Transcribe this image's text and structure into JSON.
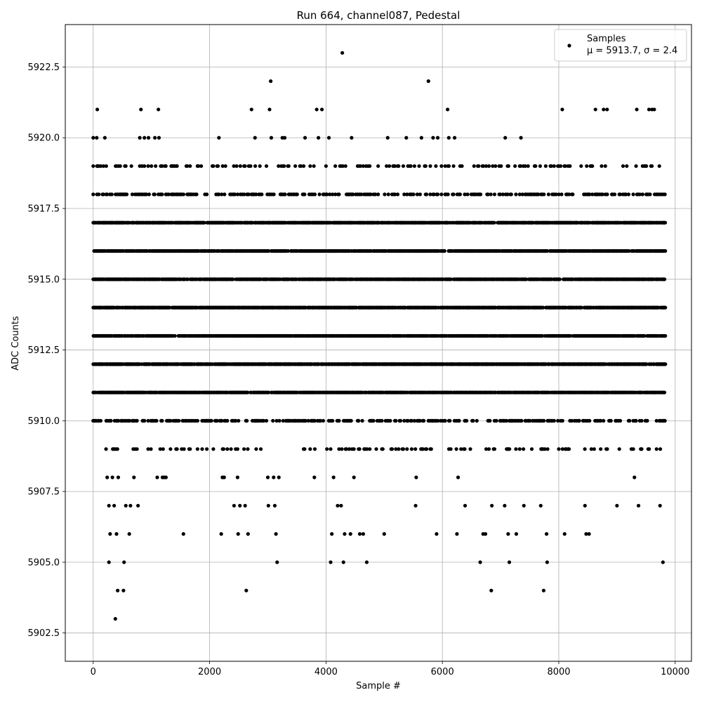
{
  "chart_data": {
    "type": "scatter",
    "title": "Run 664, channel087, Pedestal",
    "xlabel": "Sample #",
    "ylabel": "ADC Counts",
    "xlim": [
      -480,
      10280
    ],
    "ylim": [
      5901.5,
      5924
    ],
    "x_ticks": [
      0,
      2000,
      4000,
      6000,
      8000,
      10000
    ],
    "x_tick_labels": [
      "0",
      "2000",
      "4000",
      "6000",
      "8000",
      "10000"
    ],
    "y_ticks": [
      5902.5,
      5905.0,
      5907.5,
      5910.0,
      5912.5,
      5915.0,
      5917.5,
      5920.0,
      5922.5
    ],
    "y_tick_labels": [
      "5902.5",
      "5905.0",
      "5907.5",
      "5910.0",
      "5912.5",
      "5915.0",
      "5917.5",
      "5920.0",
      "5922.5"
    ],
    "grid": true,
    "legend": {
      "placement": "top-right",
      "entries": [
        {
          "name": "Samples",
          "stats": "μ = 5913.7, σ = 2.4"
        }
      ]
    },
    "series": [
      {
        "name": "Samples",
        "color": "#000000",
        "marker": "circle",
        "x_range": [
          0,
          9830
        ],
        "dense_levels": [
          5911,
          5912,
          5913,
          5914,
          5915,
          5916,
          5917
        ],
        "points": [
          [
            0,
            5920
          ],
          [
            60,
            5920
          ],
          [
            70,
            5921
          ],
          [
            80,
            5919
          ],
          [
            130,
            5919
          ],
          [
            160,
            5918
          ],
          [
            200,
            5920
          ],
          [
            220,
            5909
          ],
          [
            240,
            5908
          ],
          [
            270,
            5907
          ],
          [
            270,
            5905
          ],
          [
            290,
            5906
          ],
          [
            330,
            5908
          ],
          [
            360,
            5907
          ],
          [
            380,
            5903
          ],
          [
            400,
            5906
          ],
          [
            420,
            5904
          ],
          [
            430,
            5908
          ],
          [
            520,
            5904
          ],
          [
            530,
            5905
          ],
          [
            560,
            5907
          ],
          [
            620,
            5906
          ],
          [
            640,
            5907
          ],
          [
            700,
            5908
          ],
          [
            770,
            5907
          ],
          [
            800,
            5920
          ],
          [
            820,
            5921
          ],
          [
            840,
            5919
          ],
          [
            880,
            5920
          ],
          [
            950,
            5920
          ],
          [
            1000,
            5919
          ],
          [
            1060,
            5920
          ],
          [
            1100,
            5908
          ],
          [
            1120,
            5921
          ],
          [
            1130,
            5920
          ],
          [
            1160,
            5919
          ],
          [
            1190,
            5908
          ],
          [
            1220,
            5908
          ],
          [
            1250,
            5908
          ],
          [
            1340,
            5919
          ],
          [
            1550,
            5906
          ],
          [
            1560,
            5909
          ],
          [
            2160,
            5920
          ],
          [
            2200,
            5906
          ],
          [
            2220,
            5908
          ],
          [
            2250,
            5908
          ],
          [
            2420,
            5907
          ],
          [
            2480,
            5908
          ],
          [
            2490,
            5906
          ],
          [
            2520,
            5907
          ],
          [
            2610,
            5907
          ],
          [
            2630,
            5904
          ],
          [
            2660,
            5906
          ],
          [
            2720,
            5921
          ],
          [
            2780,
            5920
          ],
          [
            3000,
            5908
          ],
          [
            3010,
            5907
          ],
          [
            3030,
            5921
          ],
          [
            3050,
            5922
          ],
          [
            3060,
            5920
          ],
          [
            3100,
            5908
          ],
          [
            3120,
            5907
          ],
          [
            3140,
            5906
          ],
          [
            3160,
            5905
          ],
          [
            3190,
            5908
          ],
          [
            3250,
            5920
          ],
          [
            3290,
            5920
          ],
          [
            3640,
            5920
          ],
          [
            3800,
            5908
          ],
          [
            3840,
            5921
          ],
          [
            3870,
            5920
          ],
          [
            3930,
            5921
          ],
          [
            4050,
            5920
          ],
          [
            4080,
            5905
          ],
          [
            4100,
            5906
          ],
          [
            4130,
            5908
          ],
          [
            4200,
            5907
          ],
          [
            4260,
            5907
          ],
          [
            4280,
            5923
          ],
          [
            4300,
            5905
          ],
          [
            4320,
            5906
          ],
          [
            4420,
            5906
          ],
          [
            4440,
            5920
          ],
          [
            4480,
            5908
          ],
          [
            4580,
            5906
          ],
          [
            4640,
            5906
          ],
          [
            4700,
            5905
          ],
          [
            5000,
            5906
          ],
          [
            5060,
            5920
          ],
          [
            5380,
            5920
          ],
          [
            5540,
            5907
          ],
          [
            5550,
            5908
          ],
          [
            5640,
            5920
          ],
          [
            5760,
            5922
          ],
          [
            5840,
            5920
          ],
          [
            5900,
            5906
          ],
          [
            5920,
            5920
          ],
          [
            6090,
            5921
          ],
          [
            6110,
            5920
          ],
          [
            6210,
            5920
          ],
          [
            6250,
            5906
          ],
          [
            6270,
            5908
          ],
          [
            6390,
            5907
          ],
          [
            6650,
            5905
          ],
          [
            6700,
            5906
          ],
          [
            6740,
            5906
          ],
          [
            6840,
            5904
          ],
          [
            6850,
            5907
          ],
          [
            7070,
            5907
          ],
          [
            7080,
            5920
          ],
          [
            7130,
            5906
          ],
          [
            7150,
            5905
          ],
          [
            7270,
            5906
          ],
          [
            7350,
            5920
          ],
          [
            7400,
            5907
          ],
          [
            7690,
            5907
          ],
          [
            7740,
            5904
          ],
          [
            7790,
            5906
          ],
          [
            7800,
            5905
          ],
          [
            8060,
            5921
          ],
          [
            8100,
            5906
          ],
          [
            8450,
            5907
          ],
          [
            8470,
            5906
          ],
          [
            8520,
            5906
          ],
          [
            8630,
            5921
          ],
          [
            8770,
            5921
          ],
          [
            8830,
            5921
          ],
          [
            9000,
            5907
          ],
          [
            9040,
            5909
          ],
          [
            9300,
            5908
          ],
          [
            9340,
            5921
          ],
          [
            9370,
            5907
          ],
          [
            9420,
            5909
          ],
          [
            9550,
            5921
          ],
          [
            9600,
            5921
          ],
          [
            9640,
            5921
          ],
          [
            9740,
            5907
          ],
          [
            9790,
            5905
          ]
        ]
      }
    ]
  }
}
